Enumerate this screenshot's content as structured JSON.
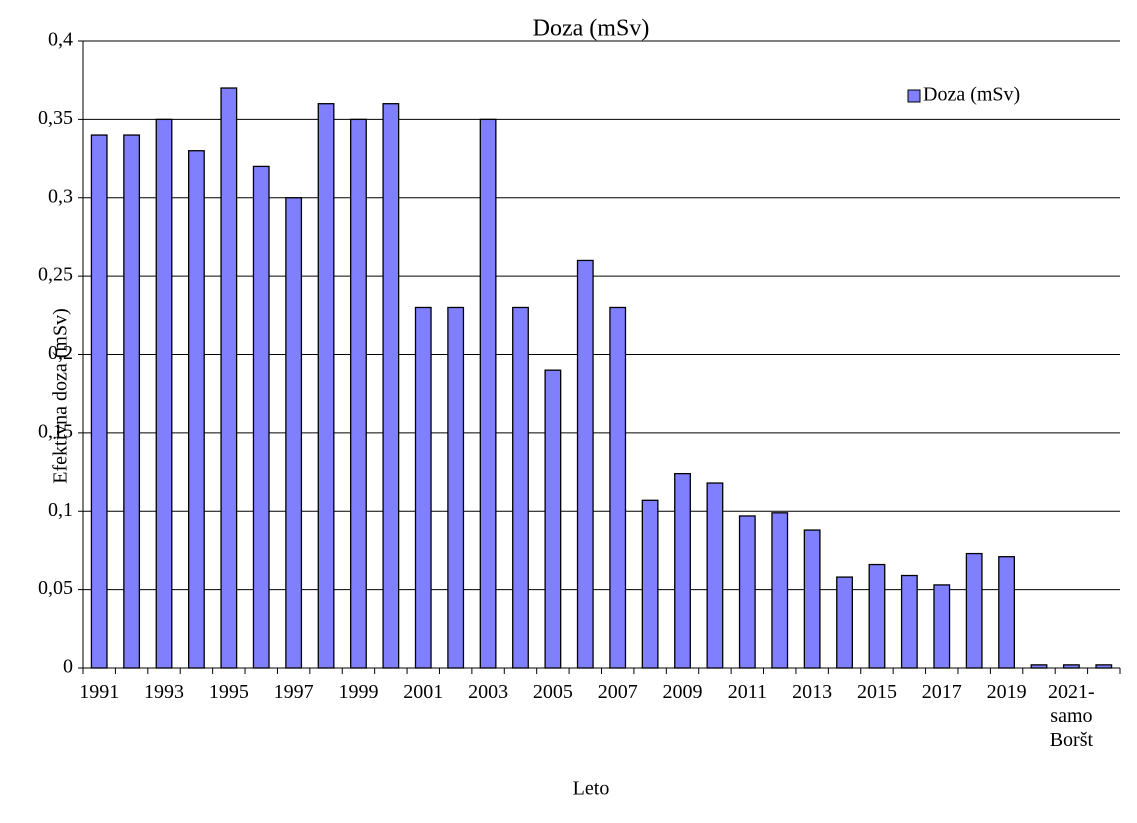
{
  "chart_data": {
    "type": "bar",
    "title": "Doza (mSv)",
    "x_label": "Leto",
    "y_label": "Efektivna doza (mSv)",
    "categories": [
      "1991",
      null,
      "1993",
      null,
      "1995",
      null,
      "1997",
      null,
      "1999",
      null,
      "2001",
      null,
      "2003",
      null,
      "2005",
      null,
      "2007",
      null,
      "2009",
      null,
      "2011",
      null,
      "2013",
      null,
      "2015",
      null,
      "2017",
      null,
      "2019",
      null,
      "2021-\nsamo\nBoršt",
      null
    ],
    "series": [
      {
        "name": "Doza (mSv)",
        "color": "#8080ff",
        "values": [
          0.34,
          0.34,
          0.35,
          0.33,
          0.37,
          0.32,
          0.3,
          0.36,
          0.35,
          0.36,
          0.23,
          0.23,
          0.35,
          0.23,
          0.19,
          0.26,
          0.23,
          0.107,
          0.124,
          0.118,
          0.097,
          0.099,
          0.088,
          0.058,
          0.066,
          0.059,
          0.053,
          0.073,
          0.071,
          0.002,
          0.002,
          0.002
        ]
      }
    ],
    "ylim": [
      0,
      0.4
    ],
    "yticks": [
      0,
      {
        "value": 0.05,
        "label": "0,05"
      },
      {
        "value": 0.1,
        "label": "0,1"
      },
      {
        "value": 0.15,
        "label": "0,15"
      },
      {
        "value": 0.2,
        "label": "0,2"
      },
      {
        "value": 0.25,
        "label": "0,25"
      },
      {
        "value": 0.3,
        "label": "0,3"
      },
      {
        "value": 0.35,
        "label": "0,35"
      },
      {
        "value": 0.4,
        "label": "0,4"
      }
    ],
    "grid": true,
    "legend": "top-right"
  }
}
